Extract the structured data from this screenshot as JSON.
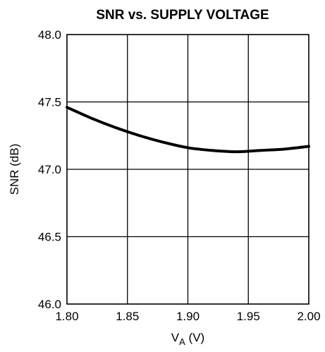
{
  "chart_data": {
    "type": "line",
    "title": "SNR vs. SUPPLY VOLTAGE",
    "xlabel": "V_A (V)",
    "xlabel_main": "V",
    "xlabel_sub": "A",
    "xlabel_rest": " (V)",
    "ylabel": "SNR (dB)",
    "xlim": [
      1.8,
      2.0
    ],
    "ylim": [
      46.0,
      48.0
    ],
    "x_ticks": [
      "1.80",
      "1.85",
      "1.90",
      "1.95",
      "2.00"
    ],
    "y_ticks": [
      "48.0",
      "47.5",
      "47.0",
      "46.5",
      "46.0"
    ],
    "x_tick_values": [
      1.8,
      1.85,
      1.9,
      1.95,
      2.0
    ],
    "y_tick_values": [
      48.0,
      47.5,
      47.0,
      46.5,
      46.0
    ],
    "grid": true,
    "series": [
      {
        "x": [
          1.8,
          1.82,
          1.84,
          1.86,
          1.88,
          1.9,
          1.92,
          1.94,
          1.96,
          1.98,
          2.0
        ],
        "y": [
          47.46,
          47.38,
          47.31,
          47.25,
          47.2,
          47.16,
          47.14,
          47.13,
          47.14,
          47.15,
          47.17
        ]
      }
    ]
  }
}
